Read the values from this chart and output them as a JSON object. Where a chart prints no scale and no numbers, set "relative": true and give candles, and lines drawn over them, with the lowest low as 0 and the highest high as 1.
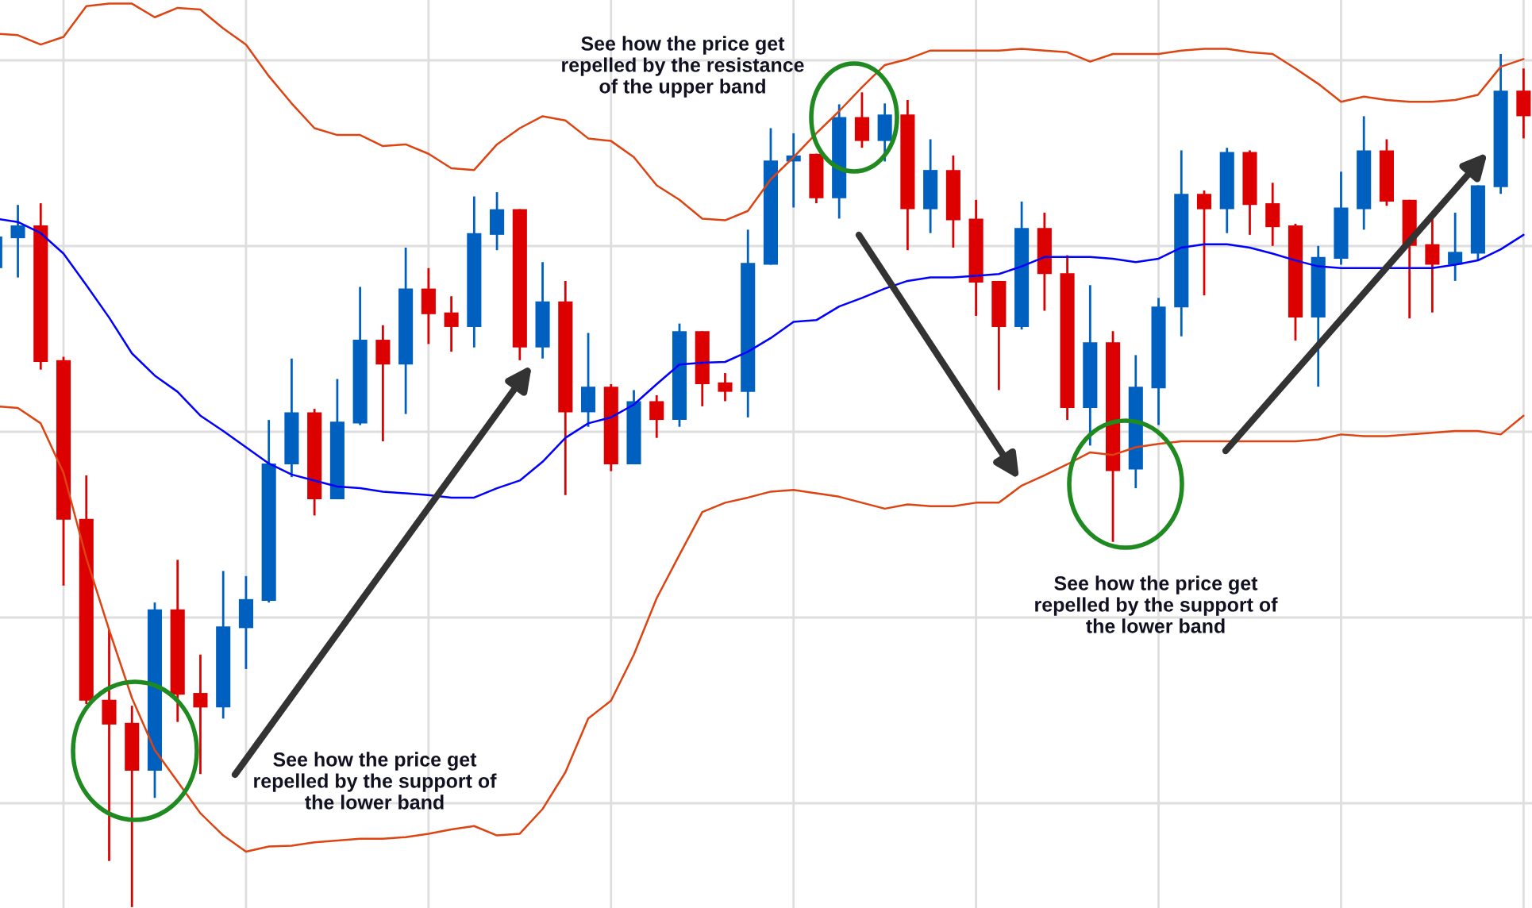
{
  "chart_data": {
    "type": "candlestick",
    "relative": true,
    "grid": true,
    "categories": [
      null,
      null,
      null,
      null,
      null,
      null,
      null,
      null,
      null,
      null,
      null,
      null,
      null,
      null,
      null,
      null,
      null,
      null,
      null,
      null,
      null,
      null,
      null,
      null,
      null,
      null,
      null,
      null,
      null,
      null,
      null,
      null,
      null,
      null,
      null,
      null,
      null,
      null,
      null,
      null,
      null,
      null,
      null,
      null,
      null,
      null,
      null,
      null,
      null,
      null,
      null,
      null,
      null,
      null,
      null,
      null,
      null,
      null,
      null,
      null,
      null,
      null,
      null,
      null,
      null,
      null,
      null,
      null
    ],
    "ohlc": [
      [
        0.749,
        0.786,
        0.749,
        0.786
      ],
      [
        0.784,
        0.823,
        0.738,
        0.799
      ],
      [
        0.799,
        0.825,
        0.63,
        0.639
      ],
      [
        0.641,
        0.645,
        0.377,
        0.454
      ],
      [
        0.455,
        0.506,
        0.238,
        0.242
      ],
      [
        0.243,
        0.325,
        0.054,
        0.214
      ],
      [
        0.216,
        0.236,
        0,
        0.16
      ],
      [
        0.16,
        0.357,
        0.128,
        0.349
      ],
      [
        0.349,
        0.407,
        0.217,
        0.249
      ],
      [
        0.251,
        0.296,
        0.156,
        0.234
      ],
      [
        0.234,
        0.394,
        0.221,
        0.329
      ],
      [
        0.327,
        0.388,
        0.279,
        0.361
      ],
      [
        0.359,
        0.571,
        0.357,
        0.52
      ],
      [
        0.519,
        0.643,
        0.504,
        0.58
      ],
      [
        0.58,
        0.584,
        0.459,
        0.478
      ],
      [
        0.478,
        0.619,
        0.478,
        0.569
      ],
      [
        0.567,
        0.727,
        0.565,
        0.665
      ],
      [
        0.665,
        0.682,
        0.546,
        0.636
      ],
      [
        0.636,
        0.773,
        0.578,
        0.725
      ],
      [
        0.725,
        0.749,
        0.66,
        0.695
      ],
      [
        0.697,
        0.716,
        0.651,
        0.68
      ],
      [
        0.68,
        0.833,
        0.656,
        0.79
      ],
      [
        0.788,
        0.838,
        0.77,
        0.818
      ],
      [
        0.818,
        0.818,
        0.641,
        0.656
      ],
      [
        0.656,
        0.756,
        0.643,
        0.71
      ],
      [
        0.71,
        0.734,
        0.483,
        0.58
      ],
      [
        0.58,
        0.673,
        0.563,
        0.61
      ],
      [
        0.61,
        0.613,
        0.511,
        0.519
      ],
      [
        0.519,
        0.606,
        0.519,
        0.593
      ],
      [
        0.593,
        0.6,
        0.55,
        0.571
      ],
      [
        0.571,
        0.684,
        0.563,
        0.675
      ],
      [
        0.675,
        0.675,
        0.587,
        0.613
      ],
      [
        0.615,
        0.626,
        0.593,
        0.604
      ],
      [
        0.604,
        0.794,
        0.574,
        0.755
      ],
      [
        0.753,
        0.913,
        0.753,
        0.875
      ],
      [
        0.874,
        0.907,
        0.82,
        0.881
      ],
      [
        0.883,
        0.883,
        0.825,
        0.831
      ],
      [
        0.831,
        0.941,
        0.807,
        0.926
      ],
      [
        0.926,
        0.955,
        0.89,
        0.898
      ],
      [
        0.898,
        0.942,
        0.874,
        0.929
      ],
      [
        0.929,
        0.946,
        0.77,
        0.818
      ],
      [
        0.818,
        0.9,
        0.79,
        0.864
      ],
      [
        0.864,
        0.881,
        0.773,
        0.805
      ],
      [
        0.807,
        0.829,
        0.693,
        0.732
      ],
      [
        0.734,
        0.734,
        0.606,
        0.68
      ],
      [
        0.68,
        0.827,
        0.677,
        0.796
      ],
      [
        0.796,
        0.814,
        0.699,
        0.742
      ],
      [
        0.743,
        0.764,
        0.571,
        0.585
      ],
      [
        0.585,
        0.729,
        0.541,
        0.662
      ],
      [
        0.662,
        0.675,
        0.428,
        0.511
      ],
      [
        0.513,
        0.647,
        0.491,
        0.61
      ],
      [
        0.608,
        0.714,
        0.565,
        0.704
      ],
      [
        0.703,
        0.887,
        0.669,
        0.836
      ],
      [
        0.836,
        0.84,
        0.717,
        0.818
      ],
      [
        0.818,
        0.89,
        0.79,
        0.885
      ],
      [
        0.885,
        0.887,
        0.788,
        0.823
      ],
      [
        0.825,
        0.849,
        0.775,
        0.797
      ],
      [
        0.799,
        0.801,
        0.664,
        0.691
      ],
      [
        0.691,
        0.775,
        0.61,
        0.762
      ],
      [
        0.76,
        0.862,
        0.753,
        0.82
      ],
      [
        0.818,
        0.927,
        0.794,
        0.887
      ],
      [
        0.887,
        0.9,
        0.822,
        0.827
      ],
      [
        0.829,
        0.829,
        0.69,
        0.775
      ],
      [
        0.777,
        0.81,
        0.697,
        0.753
      ],
      [
        0.753,
        0.814,
        0.734,
        0.768
      ],
      [
        0.766,
        0.846,
        0.758,
        0.846
      ],
      [
        0.844,
        1,
        0.836,
        0.957
      ],
      [
        0.957,
        0.983,
        0.901,
        0.927
      ]
    ],
    "colors": [
      "#0060c0",
      "#0060c0",
      "#dd0000",
      "#dd0000",
      "#dd0000",
      "#dd0000",
      "#dd0000",
      "#0060c0",
      "#dd0000",
      "#dd0000",
      "#0060c0",
      "#0060c0",
      "#0060c0",
      "#0060c0",
      "#dd0000",
      "#0060c0",
      "#0060c0",
      "#dd0000",
      "#0060c0",
      "#dd0000",
      "#dd0000",
      "#0060c0",
      "#0060c0",
      "#dd0000",
      "#0060c0",
      "#dd0000",
      "#0060c0",
      "#dd0000",
      "#0060c0",
      "#dd0000",
      "#0060c0",
      "#dd0000",
      "#dd0000",
      "#0060c0",
      "#0060c0",
      "#0060c0",
      "#dd0000",
      "#0060c0",
      "#dd0000",
      "#0060c0",
      "#dd0000",
      "#0060c0",
      "#dd0000",
      "#dd0000",
      "#dd0000",
      "#0060c0",
      "#dd0000",
      "#dd0000",
      "#0060c0",
      "#dd0000",
      "#0060c0",
      "#0060c0",
      "#0060c0",
      "#dd0000",
      "#0060c0",
      "#dd0000",
      "#dd0000",
      "#dd0000",
      "#0060c0",
      "#0060c0",
      "#0060c0",
      "#dd0000",
      "#dd0000",
      "#dd0000",
      "#0060c0",
      "#0060c0",
      "#0060c0",
      "#dd0000"
    ],
    "series": [
      {
        "type": "line",
        "color": "#dd4411",
        "values": [
          1.024,
          1.022,
          1.011,
          1.02,
          1.056,
          1.059,
          1.059,
          1.043,
          1.054,
          1.052,
          1.03,
          1.011,
          0.974,
          0.942,
          0.913,
          0.905,
          0.905,
          0.892,
          0.894,
          0.883,
          0.866,
          0.864,
          0.894,
          0.913,
          0.927,
          0.922,
          0.901,
          0.898,
          0.879,
          0.846,
          0.829,
          0.807,
          0.805,
          0.816,
          0.853,
          0.879,
          0.907,
          0.933,
          0.961,
          0.987,
          0.994,
          1.004,
          1.004,
          1.004,
          1.004,
          1.006,
          1.004,
          1.002,
          0.991,
          1.0,
          1.0,
          1.0,
          1.004,
          1.006,
          1.006,
          1.002,
          1.0,
          0.983,
          0.965,
          0.944,
          0.95,
          0.946,
          0.944,
          0.944,
          0.946,
          0.952,
          0.985,
          0.994
        ]
      },
      {
        "type": "line",
        "color": "#0000ff",
        "values": [
          0.807,
          0.803,
          0.79,
          0.766,
          0.729,
          0.691,
          0.649,
          0.623,
          0.604,
          0.576,
          0.558,
          0.539,
          0.52,
          0.507,
          0.5,
          0.493,
          0.491,
          0.487,
          0.485,
          0.483,
          0.48,
          0.48,
          0.491,
          0.5,
          0.522,
          0.55,
          0.567,
          0.574,
          0.589,
          0.613,
          0.636,
          0.638,
          0.639,
          0.651,
          0.667,
          0.686,
          0.688,
          0.704,
          0.714,
          0.725,
          0.734,
          0.738,
          0.738,
          0.74,
          0.742,
          0.751,
          0.762,
          0.762,
          0.762,
          0.76,
          0.756,
          0.76,
          0.773,
          0.777,
          0.777,
          0.773,
          0.766,
          0.758,
          0.751,
          0.749,
          0.749,
          0.749,
          0.749,
          0.749,
          0.753,
          0.758,
          0.771,
          0.788
        ]
      },
      {
        "type": "line",
        "color": "#dd4411",
        "values": [
          0.587,
          0.585,
          0.567,
          0.509,
          0.409,
          0.325,
          0.245,
          0.184,
          0.147,
          0.11,
          0.084,
          0.065,
          0.071,
          0.072,
          0.076,
          0.078,
          0.08,
          0.08,
          0.082,
          0.086,
          0.091,
          0.095,
          0.084,
          0.086,
          0.115,
          0.158,
          0.221,
          0.242,
          0.296,
          0.362,
          0.413,
          0.463,
          0.474,
          0.48,
          0.487,
          0.489,
          0.485,
          0.481,
          0.474,
          0.467,
          0.472,
          0.47,
          0.47,
          0.474,
          0.474,
          0.494,
          0.506,
          0.519,
          0.533,
          0.53,
          0.539,
          0.543,
          0.546,
          0.546,
          0.546,
          0.546,
          0.546,
          0.546,
          0.548,
          0.554,
          0.552,
          0.552,
          0.554,
          0.556,
          0.558,
          0.558,
          0.554,
          0.576
        ]
      }
    ],
    "annotations": [
      "See how the price get\nrepelled by the resistance\nof the upper band",
      "See how the price get\nrepelled by the support of\nthe lower band",
      "See how the price get\nrepelled by the support of\nthe lower band"
    ]
  }
}
